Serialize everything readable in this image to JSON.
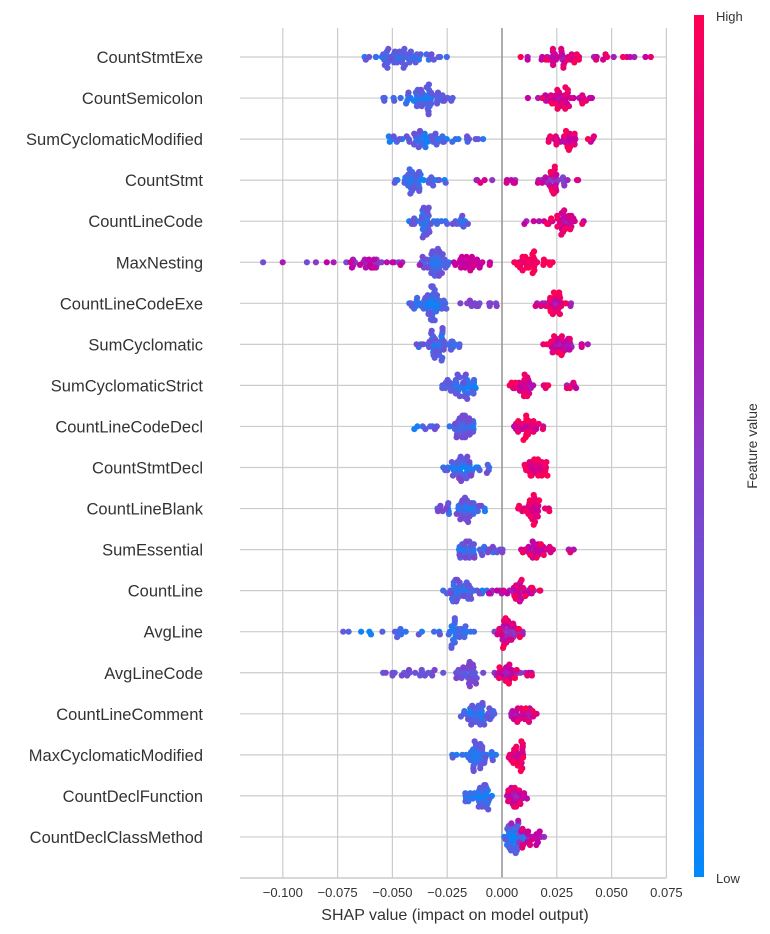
{
  "chart_data": {
    "type": "scatter",
    "subtype": "shap-beeswarm",
    "title": "",
    "xlabel": "SHAP value (impact on model output)",
    "ylabel": "",
    "xlim": [
      -0.12,
      0.075
    ],
    "x_ticks": [
      -0.1,
      -0.075,
      -0.05,
      -0.025,
      0.0,
      0.025,
      0.05,
      0.075
    ],
    "x_tick_labels": [
      "−0.100",
      "−0.075",
      "−0.050",
      "−0.025",
      "0.000",
      "0.025",
      "0.050",
      "0.075"
    ],
    "grid": true,
    "colorbar": {
      "title": "Feature value",
      "high_label": "High",
      "low_label": "Low",
      "colors": [
        "#008afb",
        "#5a5ee0",
        "#8a3bc6",
        "#c100a8",
        "#ff0052"
      ],
      "placement": "right"
    },
    "features": [
      {
        "name": "CountStmtExe",
        "clusters": [
          {
            "min": -0.068,
            "max": -0.025,
            "center": -0.048,
            "n": 60,
            "feature_value": [
              0.0,
              0.35
            ]
          },
          {
            "min": 0.006,
            "max": 0.068,
            "center": 0.028,
            "n": 50,
            "feature_value": [
              0.6,
              1.0
            ]
          }
        ]
      },
      {
        "name": "CountSemicolon",
        "clusters": [
          {
            "min": -0.055,
            "max": -0.021,
            "center": -0.035,
            "n": 60,
            "feature_value": [
              0.0,
              0.35
            ]
          },
          {
            "min": 0.005,
            "max": 0.044,
            "center": 0.027,
            "n": 45,
            "feature_value": [
              0.6,
              1.0
            ]
          }
        ]
      },
      {
        "name": "SumCyclomaticModified",
        "clusters": [
          {
            "min": -0.052,
            "max": -0.008,
            "center": -0.036,
            "n": 55,
            "feature_value": [
              0.0,
              0.35
            ]
          },
          {
            "min": 0.021,
            "max": 0.043,
            "center": 0.03,
            "n": 35,
            "feature_value": [
              0.65,
              1.0
            ]
          }
        ]
      },
      {
        "name": "CountStmt",
        "clusters": [
          {
            "min": -0.049,
            "max": -0.018,
            "center": -0.041,
            "n": 45,
            "feature_value": [
              0.0,
              0.3
            ]
          },
          {
            "min": -0.016,
            "max": 0.035,
            "center": 0.024,
            "n": 45,
            "feature_value": [
              0.4,
              1.0
            ]
          }
        ]
      },
      {
        "name": "CountLineCode",
        "clusters": [
          {
            "min": -0.045,
            "max": -0.014,
            "center": -0.036,
            "n": 50,
            "feature_value": [
              0.0,
              0.35
            ]
          },
          {
            "min": 0.007,
            "max": 0.038,
            "center": 0.027,
            "n": 40,
            "feature_value": [
              0.55,
              1.0
            ]
          }
        ]
      },
      {
        "name": "MaxNesting",
        "clusters": [
          {
            "min": -0.11,
            "max": -0.035,
            "center": -0.06,
            "n": 40,
            "feature_value": [
              0.35,
              0.8
            ]
          },
          {
            "min": -0.038,
            "max": -0.024,
            "center": -0.03,
            "n": 45,
            "feature_value": [
              0.0,
              0.4
            ]
          },
          {
            "min": -0.024,
            "max": -0.003,
            "center": -0.015,
            "n": 28,
            "feature_value": [
              0.7,
              0.85
            ]
          },
          {
            "min": 0.005,
            "max": 0.026,
            "center": 0.012,
            "n": 35,
            "feature_value": [
              0.9,
              1.0
            ]
          }
        ]
      },
      {
        "name": "CountLineCodeExe",
        "clusters": [
          {
            "min": -0.044,
            "max": -0.024,
            "center": -0.032,
            "n": 55,
            "feature_value": [
              0.0,
              0.3
            ]
          },
          {
            "min": -0.022,
            "max": 0.006,
            "center": -0.01,
            "n": 14,
            "feature_value": [
              0.35,
              0.5
            ]
          },
          {
            "min": 0.014,
            "max": 0.033,
            "center": 0.026,
            "n": 35,
            "feature_value": [
              0.55,
              1.0
            ]
          }
        ]
      },
      {
        "name": "SumCyclomatic",
        "clusters": [
          {
            "min": -0.04,
            "max": -0.017,
            "center": -0.029,
            "n": 50,
            "feature_value": [
              0.0,
              0.35
            ]
          },
          {
            "min": 0.016,
            "max": 0.041,
            "center": 0.027,
            "n": 40,
            "feature_value": [
              0.55,
              1.0
            ]
          }
        ]
      },
      {
        "name": "SumCyclomaticStrict",
        "clusters": [
          {
            "min": -0.028,
            "max": -0.012,
            "center": -0.02,
            "n": 45,
            "feature_value": [
              0.0,
              0.35
            ]
          },
          {
            "min": 0.001,
            "max": 0.035,
            "center": 0.01,
            "n": 40,
            "feature_value": [
              0.6,
              1.0
            ]
          }
        ]
      },
      {
        "name": "CountLineCodeDecl",
        "clusters": [
          {
            "min": -0.041,
            "max": -0.008,
            "center": -0.018,
            "n": 50,
            "feature_value": [
              0.0,
              0.4
            ]
          },
          {
            "min": 0.005,
            "max": 0.019,
            "center": 0.012,
            "n": 35,
            "feature_value": [
              0.65,
              1.0
            ]
          }
        ]
      },
      {
        "name": "CountStmtDecl",
        "clusters": [
          {
            "min": -0.027,
            "max": -0.005,
            "center": -0.018,
            "n": 50,
            "feature_value": [
              0.0,
              0.45
            ]
          },
          {
            "min": 0.009,
            "max": 0.021,
            "center": 0.015,
            "n": 35,
            "feature_value": [
              0.7,
              1.0
            ]
          }
        ]
      },
      {
        "name": "CountLineBlank",
        "clusters": [
          {
            "min": -0.03,
            "max": -0.007,
            "center": -0.016,
            "n": 50,
            "feature_value": [
              0.0,
              0.45
            ]
          },
          {
            "min": 0.007,
            "max": 0.022,
            "center": 0.014,
            "n": 35,
            "feature_value": [
              0.75,
              1.0
            ]
          }
        ]
      },
      {
        "name": "SumEssential",
        "clusters": [
          {
            "min": -0.02,
            "max": 0.002,
            "center": -0.015,
            "n": 45,
            "feature_value": [
              0.0,
              0.45
            ]
          },
          {
            "min": 0.008,
            "max": 0.035,
            "center": 0.017,
            "n": 35,
            "feature_value": [
              0.6,
              1.0
            ]
          }
        ]
      },
      {
        "name": "CountLine",
        "clusters": [
          {
            "min": -0.028,
            "max": -0.006,
            "center": -0.018,
            "n": 45,
            "feature_value": [
              0.0,
              0.4
            ]
          },
          {
            "min": -0.006,
            "max": 0.018,
            "center": 0.008,
            "n": 40,
            "feature_value": [
              0.5,
              1.0
            ]
          }
        ]
      },
      {
        "name": "AvgLine",
        "clusters": [
          {
            "min": -0.074,
            "max": -0.01,
            "center": -0.02,
            "n": 45,
            "feature_value": [
              0.0,
              0.3
            ]
          },
          {
            "min": -0.004,
            "max": 0.01,
            "center": 0.003,
            "n": 40,
            "feature_value": [
              0.4,
              1.0
            ]
          }
        ]
      },
      {
        "name": "AvgLineCode",
        "clusters": [
          {
            "min": -0.055,
            "max": -0.008,
            "center": -0.015,
            "n": 55,
            "feature_value": [
              0.2,
              0.45
            ]
          },
          {
            "min": -0.006,
            "max": 0.014,
            "center": 0.002,
            "n": 35,
            "feature_value": [
              0.45,
              1.0
            ]
          }
        ]
      },
      {
        "name": "CountLineComment",
        "clusters": [
          {
            "min": -0.02,
            "max": -0.003,
            "center": -0.011,
            "n": 45,
            "feature_value": [
              0.0,
              0.35
            ]
          },
          {
            "min": 0.0,
            "max": 0.016,
            "center": 0.01,
            "n": 30,
            "feature_value": [
              0.5,
              1.0
            ]
          }
        ]
      },
      {
        "name": "MaxCyclomaticModified",
        "clusters": [
          {
            "min": -0.023,
            "max": -0.002,
            "center": -0.011,
            "n": 45,
            "feature_value": [
              0.0,
              0.35
            ]
          },
          {
            "min": 0.003,
            "max": 0.011,
            "center": 0.007,
            "n": 30,
            "feature_value": [
              0.7,
              1.0
            ]
          }
        ]
      },
      {
        "name": "CountDeclFunction",
        "clusters": [
          {
            "min": -0.017,
            "max": -0.004,
            "center": -0.009,
            "n": 40,
            "feature_value": [
              0.0,
              0.3
            ]
          },
          {
            "min": 0.0,
            "max": 0.013,
            "center": 0.006,
            "n": 30,
            "feature_value": [
              0.5,
              1.0
            ]
          }
        ]
      },
      {
        "name": "CountDeclClassMethod",
        "clusters": [
          {
            "min": 0.001,
            "max": 0.012,
            "center": 0.005,
            "n": 40,
            "feature_value": [
              0.0,
              0.3
            ]
          },
          {
            "min": 0.004,
            "max": 0.02,
            "center": 0.012,
            "n": 25,
            "feature_value": [
              0.4,
              1.0
            ]
          }
        ]
      }
    ]
  }
}
